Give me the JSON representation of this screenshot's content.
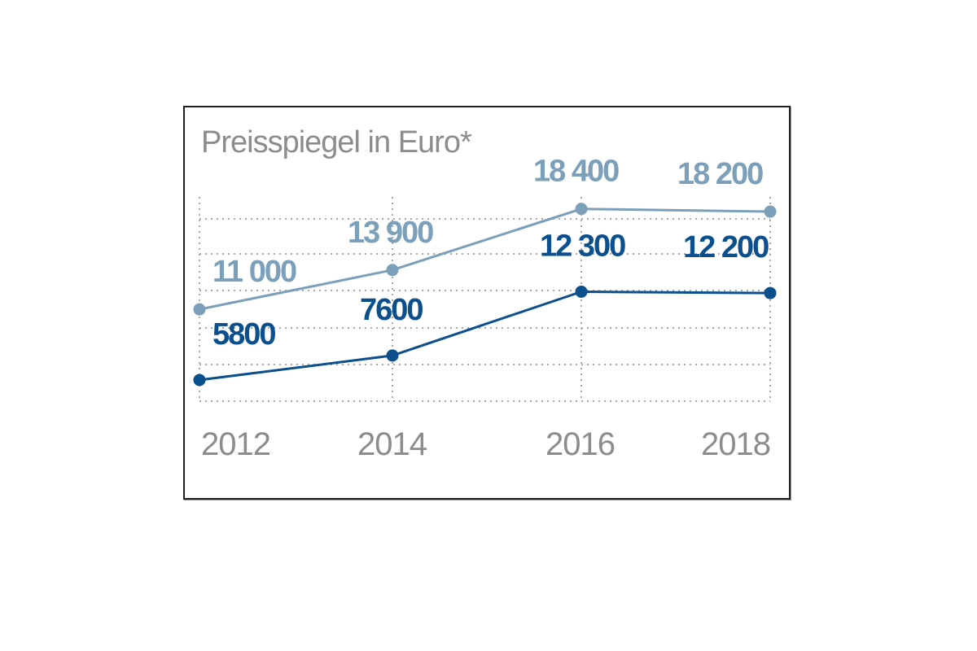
{
  "chart_data": {
    "type": "line",
    "title": "Preisspiegel in Euro*",
    "xlabel": "",
    "ylabel": "",
    "categories": [
      "2012",
      "2014",
      "2016",
      "2018"
    ],
    "series": [
      {
        "values": [
          11000,
          13900,
          18400,
          18200
        ],
        "labels": [
          "11 000",
          "13 900",
          "18 400",
          "18 200"
        ],
        "color": "#7c9fba"
      },
      {
        "values": [
          5800,
          7600,
          12300,
          12200
        ],
        "labels": [
          "5800",
          "7600",
          "12 300",
          "12 200"
        ],
        "color": "#0b4f8c"
      }
    ],
    "ylim": [
      3700,
      19400
    ],
    "grid": "dotted",
    "legend": "none"
  }
}
